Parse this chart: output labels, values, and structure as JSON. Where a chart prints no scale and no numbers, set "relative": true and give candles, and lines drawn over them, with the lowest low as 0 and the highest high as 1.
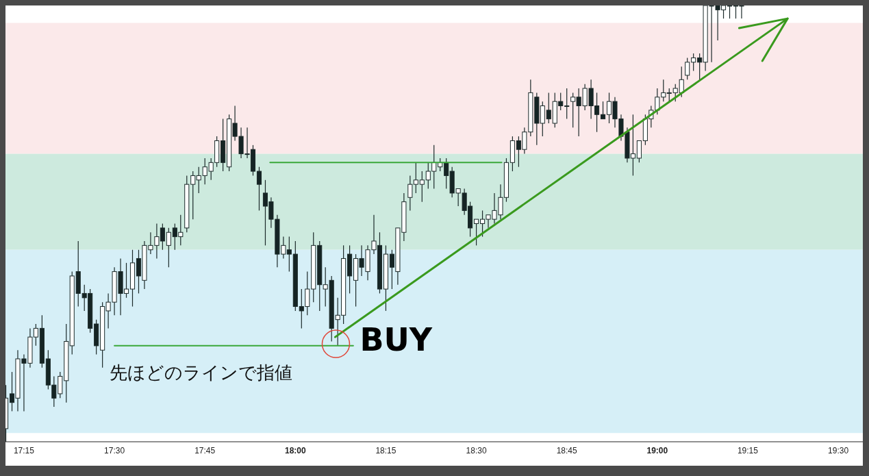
{
  "chart_data": {
    "type": "candlestick",
    "relative": true,
    "x": [
      17.2,
      17.217,
      17.233,
      17.25,
      17.267,
      17.283,
      17.3,
      17.317,
      17.333,
      17.35,
      17.367,
      17.383,
      17.4,
      17.417,
      17.433,
      17.45,
      17.467,
      17.483,
      17.5,
      17.517,
      17.533,
      17.55,
      17.567,
      17.583,
      17.6,
      17.617,
      17.633,
      17.65,
      17.667,
      17.683,
      17.7,
      17.717,
      17.733,
      17.75,
      17.767,
      17.783,
      17.8,
      17.817,
      17.833,
      17.85,
      17.867,
      17.883,
      17.9,
      17.917,
      17.933,
      17.95,
      17.967,
      17.983,
      18,
      18.017,
      18.033,
      18.05,
      18.067,
      18.083,
      18.1,
      18.117,
      18.133,
      18.15,
      18.167,
      18.183,
      18.2,
      18.217,
      18.233,
      18.25,
      18.267,
      18.283,
      18.3,
      18.317,
      18.333,
      18.35,
      18.367,
      18.383,
      18.4,
      18.417,
      18.433,
      18.45,
      18.467,
      18.483,
      18.5,
      18.517,
      18.533,
      18.55,
      18.567,
      18.583,
      18.6,
      18.617,
      18.633,
      18.65,
      18.667,
      18.683,
      18.7,
      18.717,
      18.733,
      18.75,
      18.767,
      18.783,
      18.8,
      18.817,
      18.833,
      18.85,
      18.867,
      18.883,
      18.9,
      18.917,
      18.933,
      18.95,
      18.967,
      18.983,
      19,
      19.017,
      19.033,
      19.05,
      19.067,
      19.083,
      19.1,
      19.117,
      19.133,
      19.15,
      19.167,
      19.183,
      19.2,
      19.217,
      19.233
    ],
    "ohlc": [
      [
        0.03,
        0.13,
        0,
        0.1
      ],
      [
        0.11,
        0.16,
        0.07,
        0.09
      ],
      [
        0.1,
        0.21,
        0.07,
        0.19
      ],
      [
        0.19,
        0.2,
        0.07,
        0.18
      ],
      [
        0.18,
        0.26,
        0.17,
        0.24
      ],
      [
        0.24,
        0.27,
        0.22,
        0.26
      ],
      [
        0.26,
        0.29,
        0.17,
        0.18
      ],
      [
        0.19,
        0.21,
        0.12,
        0.13
      ],
      [
        0.13,
        0.15,
        0.08,
        0.1
      ],
      [
        0.11,
        0.16,
        0.1,
        0.15
      ],
      [
        0.14,
        0.27,
        0.09,
        0.23
      ],
      [
        0.22,
        0.39,
        0.2,
        0.38
      ],
      [
        0.39,
        0.46,
        0.31,
        0.34
      ],
      [
        0.34,
        0.36,
        0.3,
        0.33
      ],
      [
        0.34,
        0.35,
        0.25,
        0.26
      ],
      [
        0.27,
        0.28,
        0.2,
        0.22
      ],
      [
        0.21,
        0.32,
        0.17,
        0.31
      ],
      [
        0.3,
        0.34,
        0.26,
        0.32
      ],
      [
        0.32,
        0.4,
        0.29,
        0.39
      ],
      [
        0.39,
        0.42,
        0.29,
        0.34
      ],
      [
        0.34,
        0.41,
        0.33,
        0.35
      ],
      [
        0.35,
        0.44,
        0.31,
        0.41
      ],
      [
        0.42,
        0.44,
        0.34,
        0.38
      ],
      [
        0.37,
        0.46,
        0.35,
        0.45
      ],
      [
        0.44,
        0.48,
        0.43,
        0.45
      ],
      [
        0.45,
        0.5,
        0.42,
        0.47
      ],
      [
        0.49,
        0.5,
        0.44,
        0.46
      ],
      [
        0.45,
        0.49,
        0.4,
        0.48
      ],
      [
        0.49,
        0.5,
        0.44,
        0.47
      ],
      [
        0.47,
        0.52,
        0.45,
        0.48
      ],
      [
        0.49,
        0.61,
        0.48,
        0.59
      ],
      [
        0.59,
        0.62,
        0.51,
        0.61
      ],
      [
        0.6,
        0.63,
        0.57,
        0.61
      ],
      [
        0.61,
        0.65,
        0.59,
        0.63
      ],
      [
        0.62,
        0.65,
        0.6,
        0.64
      ],
      [
        0.64,
        0.7,
        0.63,
        0.69
      ],
      [
        0.69,
        0.74,
        0.62,
        0.64
      ],
      [
        0.63,
        0.75,
        0.62,
        0.74
      ],
      [
        0.73,
        0.77,
        0.69,
        0.7
      ],
      [
        0.7,
        0.72,
        0.65,
        0.66
      ],
      [
        0.66,
        0.72,
        0.65,
        0.66
      ],
      [
        0.67,
        0.68,
        0.61,
        0.62
      ],
      [
        0.62,
        0.63,
        0.53,
        0.59
      ],
      [
        0.57,
        0.6,
        0.45,
        0.54
      ],
      [
        0.55,
        0.56,
        0.49,
        0.51
      ],
      [
        0.51,
        0.52,
        0.4,
        0.43
      ],
      [
        0.43,
        0.47,
        0.42,
        0.45
      ],
      [
        0.44,
        0.47,
        0.39,
        0.43
      ],
      [
        0.43,
        0.46,
        0.3,
        0.31
      ],
      [
        0.31,
        0.35,
        0.26,
        0.3
      ],
      [
        0.31,
        0.39,
        0.29,
        0.35
      ],
      [
        0.35,
        0.48,
        0.32,
        0.45
      ],
      [
        0.45,
        0.46,
        0.3,
        0.36
      ],
      [
        0.35,
        0.4,
        0.31,
        0.36
      ],
      [
        0.37,
        0.38,
        0.23,
        0.26
      ],
      [
        0.28,
        0.33,
        0.22,
        0.29
      ],
      [
        0.29,
        0.45,
        0.27,
        0.42
      ],
      [
        0.43,
        0.45,
        0.34,
        0.38
      ],
      [
        0.37,
        0.43,
        0.31,
        0.42
      ],
      [
        0.42,
        0.45,
        0.38,
        0.4
      ],
      [
        0.39,
        0.45,
        0.37,
        0.44
      ],
      [
        0.44,
        0.52,
        0.43,
        0.46
      ],
      [
        0.45,
        0.48,
        0.34,
        0.35
      ],
      [
        0.35,
        0.45,
        0.3,
        0.43
      ],
      [
        0.43,
        0.44,
        0.35,
        0.4
      ],
      [
        0.39,
        0.49,
        0.36,
        0.49
      ],
      [
        0.48,
        0.57,
        0.46,
        0.55
      ],
      [
        0.56,
        0.61,
        0.53,
        0.59
      ],
      [
        0.59,
        0.64,
        0.57,
        0.6
      ],
      [
        0.59,
        0.62,
        0.55,
        0.6
      ],
      [
        0.6,
        0.64,
        0.58,
        0.62
      ],
      [
        0.62,
        0.68,
        0.58,
        0.64
      ],
      [
        0.63,
        0.65,
        0.62,
        0.64
      ],
      [
        0.64,
        0.65,
        0.58,
        0.61
      ],
      [
        0.62,
        0.63,
        0.56,
        0.57
      ],
      [
        0.57,
        0.58,
        0.54,
        0.58
      ],
      [
        0.57,
        0.58,
        0.52,
        0.53
      ],
      [
        0.54,
        0.55,
        0.47,
        0.49
      ],
      [
        0.5,
        0.51,
        0.45,
        0.51
      ],
      [
        0.5,
        0.53,
        0.47,
        0.51
      ],
      [
        0.51,
        0.52,
        0.49,
        0.52
      ],
      [
        0.51,
        0.57,
        0.5,
        0.53
      ],
      [
        0.52,
        0.59,
        0.51,
        0.56
      ],
      [
        0.56,
        0.65,
        0.55,
        0.64
      ],
      [
        0.64,
        0.7,
        0.62,
        0.69
      ],
      [
        0.69,
        0.7,
        0.63,
        0.67
      ],
      [
        0.67,
        0.72,
        0.66,
        0.71
      ],
      [
        0.71,
        0.83,
        0.7,
        0.8
      ],
      [
        0.79,
        0.8,
        0.68,
        0.73
      ],
      [
        0.73,
        0.78,
        0.7,
        0.77
      ],
      [
        0.76,
        0.8,
        0.73,
        0.74
      ],
      [
        0.73,
        0.8,
        0.72,
        0.78
      ],
      [
        0.78,
        0.8,
        0.76,
        0.77
      ],
      [
        0.77,
        0.81,
        0.74,
        0.77
      ],
      [
        0.78,
        0.8,
        0.72,
        0.79
      ],
      [
        0.79,
        0.81,
        0.7,
        0.77
      ],
      [
        0.77,
        0.82,
        0.76,
        0.81
      ],
      [
        0.81,
        0.83,
        0.74,
        0.77
      ],
      [
        0.77,
        0.8,
        0.71,
        0.75
      ],
      [
        0.75,
        0.78,
        0.74,
        0.74
      ],
      [
        0.75,
        0.8,
        0.73,
        0.78
      ],
      [
        0.78,
        0.79,
        0.72,
        0.74
      ],
      [
        0.74,
        0.75,
        0.69,
        0.7
      ],
      [
        0.71,
        0.72,
        0.64,
        0.65
      ],
      [
        0.65,
        0.75,
        0.61,
        0.66
      ],
      [
        0.65,
        0.69,
        0.64,
        0.69
      ],
      [
        0.69,
        0.75,
        0.68,
        0.74
      ],
      [
        0.74,
        0.77,
        0.72,
        0.76
      ],
      [
        0.76,
        0.81,
        0.75,
        0.79
      ],
      [
        0.79,
        0.83,
        0.78,
        0.8
      ],
      [
        0.8,
        0.81,
        0.78,
        0.8
      ],
      [
        0.8,
        0.82,
        0.78,
        0.81
      ],
      [
        0.8,
        0.86,
        0.79,
        0.83
      ],
      [
        0.84,
        0.88,
        0.83,
        0.87
      ],
      [
        0.87,
        0.89,
        0.85,
        0.88
      ],
      [
        0.88,
        0.89,
        0.83,
        0.87
      ],
      [
        0.87,
        1,
        0.85,
        1
      ],
      [
        1,
        1,
        0.87,
        1
      ],
      [
        1,
        1,
        0.92,
        0.99
      ],
      [
        0.99,
        1,
        0.97,
        1
      ],
      [
        1,
        1,
        0.97,
        1
      ],
      [
        1,
        1,
        0.97,
        1
      ],
      [
        1,
        1,
        0.97,
        1
      ]
    ],
    "series": [
      {
        "type": "line",
        "x": [
          17.93,
          18.57
        ],
        "values": [
          0.64,
          0.64
        ],
        "color": "#3aa83a"
      },
      {
        "type": "line",
        "x": [
          17.5,
          18.16
        ],
        "values": [
          0.22,
          0.22
        ],
        "color": "#3aa83a"
      },
      {
        "type": "line",
        "x": [
          18.11,
          19.36
        ],
        "values": [
          0.24,
          0.97
        ],
        "color": "#3a9a1e"
      }
    ],
    "bands": [
      {
        "axis": "y",
        "from": 0.66,
        "to": 0.96,
        "color": "#fbe9ea"
      },
      {
        "axis": "y",
        "from": 0.44,
        "to": 0.66,
        "color": "#cdeade"
      },
      {
        "axis": "y",
        "from": 0.02,
        "to": 0.44,
        "color": "#d6eff7"
      }
    ],
    "xlim": [
      17.199,
      19.568
    ],
    "xticks": [
      {
        "value": 17.25,
        "label": "17:15"
      },
      {
        "value": 17.5,
        "label": "17:30"
      },
      {
        "value": 17.75,
        "label": "17:45"
      },
      {
        "value": 18,
        "label": "18:00"
      },
      {
        "value": 18.25,
        "label": "18:15"
      },
      {
        "value": 18.5,
        "label": "18:30"
      },
      {
        "value": 18.75,
        "label": "18:45"
      },
      {
        "value": 19,
        "label": "19:00"
      },
      {
        "value": 19.25,
        "label": "19:15"
      },
      {
        "value": 19.5,
        "label": "19:30"
      }
    ],
    "annotations": [
      "先ほどのラインで指値",
      {
        "text": "BUY",
        "x": 18.11,
        "y": 0.24
      }
    ]
  }
}
